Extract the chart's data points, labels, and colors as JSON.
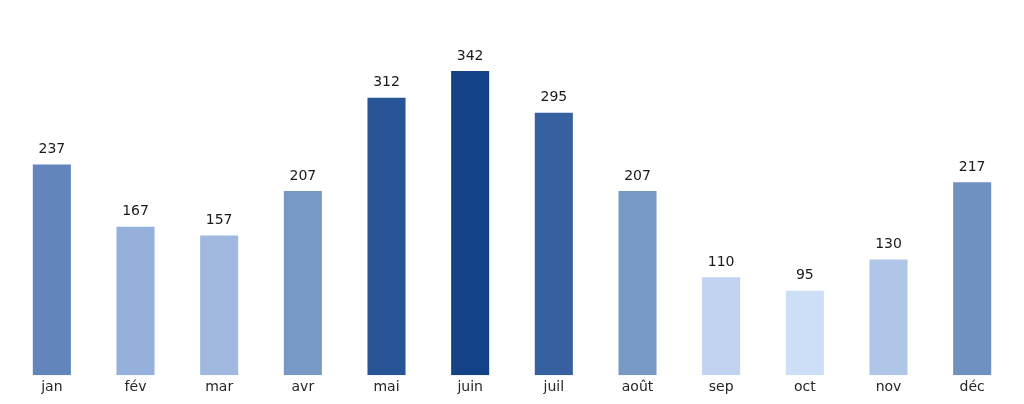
{
  "chart_data": {
    "type": "bar",
    "categories": [
      "jan",
      "fév",
      "mar",
      "avr",
      "mai",
      "juin",
      "juil",
      "août",
      "sep",
      "oct",
      "nov",
      "déc"
    ],
    "values": [
      237,
      167,
      157,
      207,
      312,
      342,
      295,
      207,
      110,
      95,
      130,
      217
    ],
    "colors": [
      "#6285bb",
      "#95b0db",
      "#a0b8df",
      "#7898c6",
      "#285595",
      "#144287",
      "#36609f",
      "#7898c6",
      "#c1d3f1",
      "#cddef7",
      "#b0c6e8",
      "#7190c2"
    ],
    "tick_labels": "x",
    "data_labels": true
  }
}
